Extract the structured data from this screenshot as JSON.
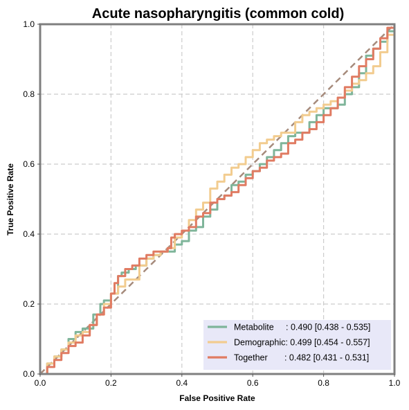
{
  "chart_data": {
    "type": "line",
    "title": "Acute nasopharyngitis (common cold)",
    "xlabel": "False Positive Rate",
    "ylabel": "True Positive Rate",
    "xlim": [
      0,
      1
    ],
    "ylim": [
      0,
      1
    ],
    "xticks": [
      "0.0",
      "0.2",
      "0.4",
      "0.6",
      "0.8",
      "1.0"
    ],
    "yticks": [
      "0.0",
      "0.2",
      "0.4",
      "0.6",
      "0.8",
      "1.0"
    ],
    "grid": true,
    "legend_position": "lower-right",
    "diagonal": {
      "x": [
        0,
        1
      ],
      "y": [
        0,
        1
      ],
      "color": "#a68b7c",
      "style": "dashed"
    },
    "series": [
      {
        "name": "Metabolite",
        "legend_label": "Metabolite     : 0.490 [0.438 - 0.535]",
        "color": "#7fb59a",
        "x": [
          0,
          0.02,
          0.04,
          0.06,
          0.08,
          0.1,
          0.12,
          0.13,
          0.15,
          0.17,
          0.18,
          0.2,
          0.22,
          0.23,
          0.25,
          0.27,
          0.28,
          0.3,
          0.32,
          0.34,
          0.36,
          0.38,
          0.4,
          0.42,
          0.44,
          0.46,
          0.48,
          0.5,
          0.52,
          0.54,
          0.56,
          0.58,
          0.6,
          0.62,
          0.64,
          0.66,
          0.68,
          0.7,
          0.72,
          0.74,
          0.76,
          0.78,
          0.8,
          0.82,
          0.84,
          0.86,
          0.88,
          0.9,
          0.92,
          0.94,
          0.96,
          0.98,
          1.0
        ],
        "y": [
          0,
          0.03,
          0.05,
          0.07,
          0.1,
          0.12,
          0.13,
          0.13,
          0.17,
          0.2,
          0.21,
          0.23,
          0.28,
          0.29,
          0.3,
          0.31,
          0.31,
          0.33,
          0.34,
          0.35,
          0.35,
          0.37,
          0.38,
          0.41,
          0.42,
          0.45,
          0.47,
          0.5,
          0.51,
          0.54,
          0.55,
          0.57,
          0.58,
          0.6,
          0.62,
          0.64,
          0.66,
          0.68,
          0.69,
          0.69,
          0.72,
          0.74,
          0.76,
          0.76,
          0.77,
          0.8,
          0.82,
          0.86,
          0.91,
          0.93,
          0.95,
          0.98,
          1.0
        ]
      },
      {
        "name": "Demographic",
        "legend_label": "Demographic: 0.499 [0.454 - 0.557]",
        "color": "#f2cc8f",
        "x": [
          0,
          0.02,
          0.04,
          0.06,
          0.08,
          0.1,
          0.12,
          0.14,
          0.16,
          0.18,
          0.2,
          0.22,
          0.24,
          0.26,
          0.28,
          0.3,
          0.32,
          0.34,
          0.36,
          0.38,
          0.4,
          0.42,
          0.44,
          0.46,
          0.48,
          0.5,
          0.52,
          0.54,
          0.56,
          0.58,
          0.6,
          0.62,
          0.64,
          0.66,
          0.68,
          0.7,
          0.72,
          0.74,
          0.76,
          0.78,
          0.8,
          0.82,
          0.84,
          0.86,
          0.88,
          0.9,
          0.92,
          0.94,
          0.96,
          0.98,
          1.0
        ],
        "y": [
          0,
          0.03,
          0.05,
          0.07,
          0.09,
          0.11,
          0.12,
          0.14,
          0.17,
          0.2,
          0.23,
          0.25,
          0.27,
          0.27,
          0.31,
          0.33,
          0.34,
          0.35,
          0.36,
          0.39,
          0.41,
          0.44,
          0.47,
          0.49,
          0.53,
          0.55,
          0.57,
          0.59,
          0.6,
          0.62,
          0.64,
          0.66,
          0.67,
          0.68,
          0.69,
          0.69,
          0.72,
          0.74,
          0.75,
          0.76,
          0.77,
          0.78,
          0.79,
          0.81,
          0.83,
          0.84,
          0.86,
          0.88,
          0.92,
          0.97,
          1.0
        ]
      },
      {
        "name": "Together",
        "legend_label": "Together       : 0.482 [0.431 - 0.531]",
        "color": "#e07b62",
        "x": [
          0,
          0.02,
          0.04,
          0.06,
          0.08,
          0.1,
          0.12,
          0.14,
          0.16,
          0.18,
          0.2,
          0.21,
          0.22,
          0.24,
          0.26,
          0.28,
          0.3,
          0.32,
          0.34,
          0.36,
          0.37,
          0.38,
          0.4,
          0.42,
          0.44,
          0.46,
          0.48,
          0.5,
          0.52,
          0.54,
          0.56,
          0.58,
          0.6,
          0.62,
          0.64,
          0.66,
          0.68,
          0.7,
          0.72,
          0.74,
          0.76,
          0.78,
          0.8,
          0.82,
          0.84,
          0.86,
          0.88,
          0.9,
          0.92,
          0.94,
          0.96,
          0.98,
          1.0
        ],
        "y": [
          0,
          0.02,
          0.04,
          0.06,
          0.08,
          0.09,
          0.11,
          0.14,
          0.17,
          0.19,
          0.23,
          0.26,
          0.28,
          0.3,
          0.31,
          0.33,
          0.34,
          0.35,
          0.35,
          0.36,
          0.39,
          0.4,
          0.41,
          0.42,
          0.45,
          0.46,
          0.49,
          0.5,
          0.51,
          0.52,
          0.54,
          0.56,
          0.58,
          0.59,
          0.61,
          0.62,
          0.63,
          0.66,
          0.67,
          0.69,
          0.7,
          0.72,
          0.74,
          0.76,
          0.79,
          0.82,
          0.85,
          0.88,
          0.9,
          0.93,
          0.96,
          0.99,
          1.0
        ]
      }
    ]
  }
}
